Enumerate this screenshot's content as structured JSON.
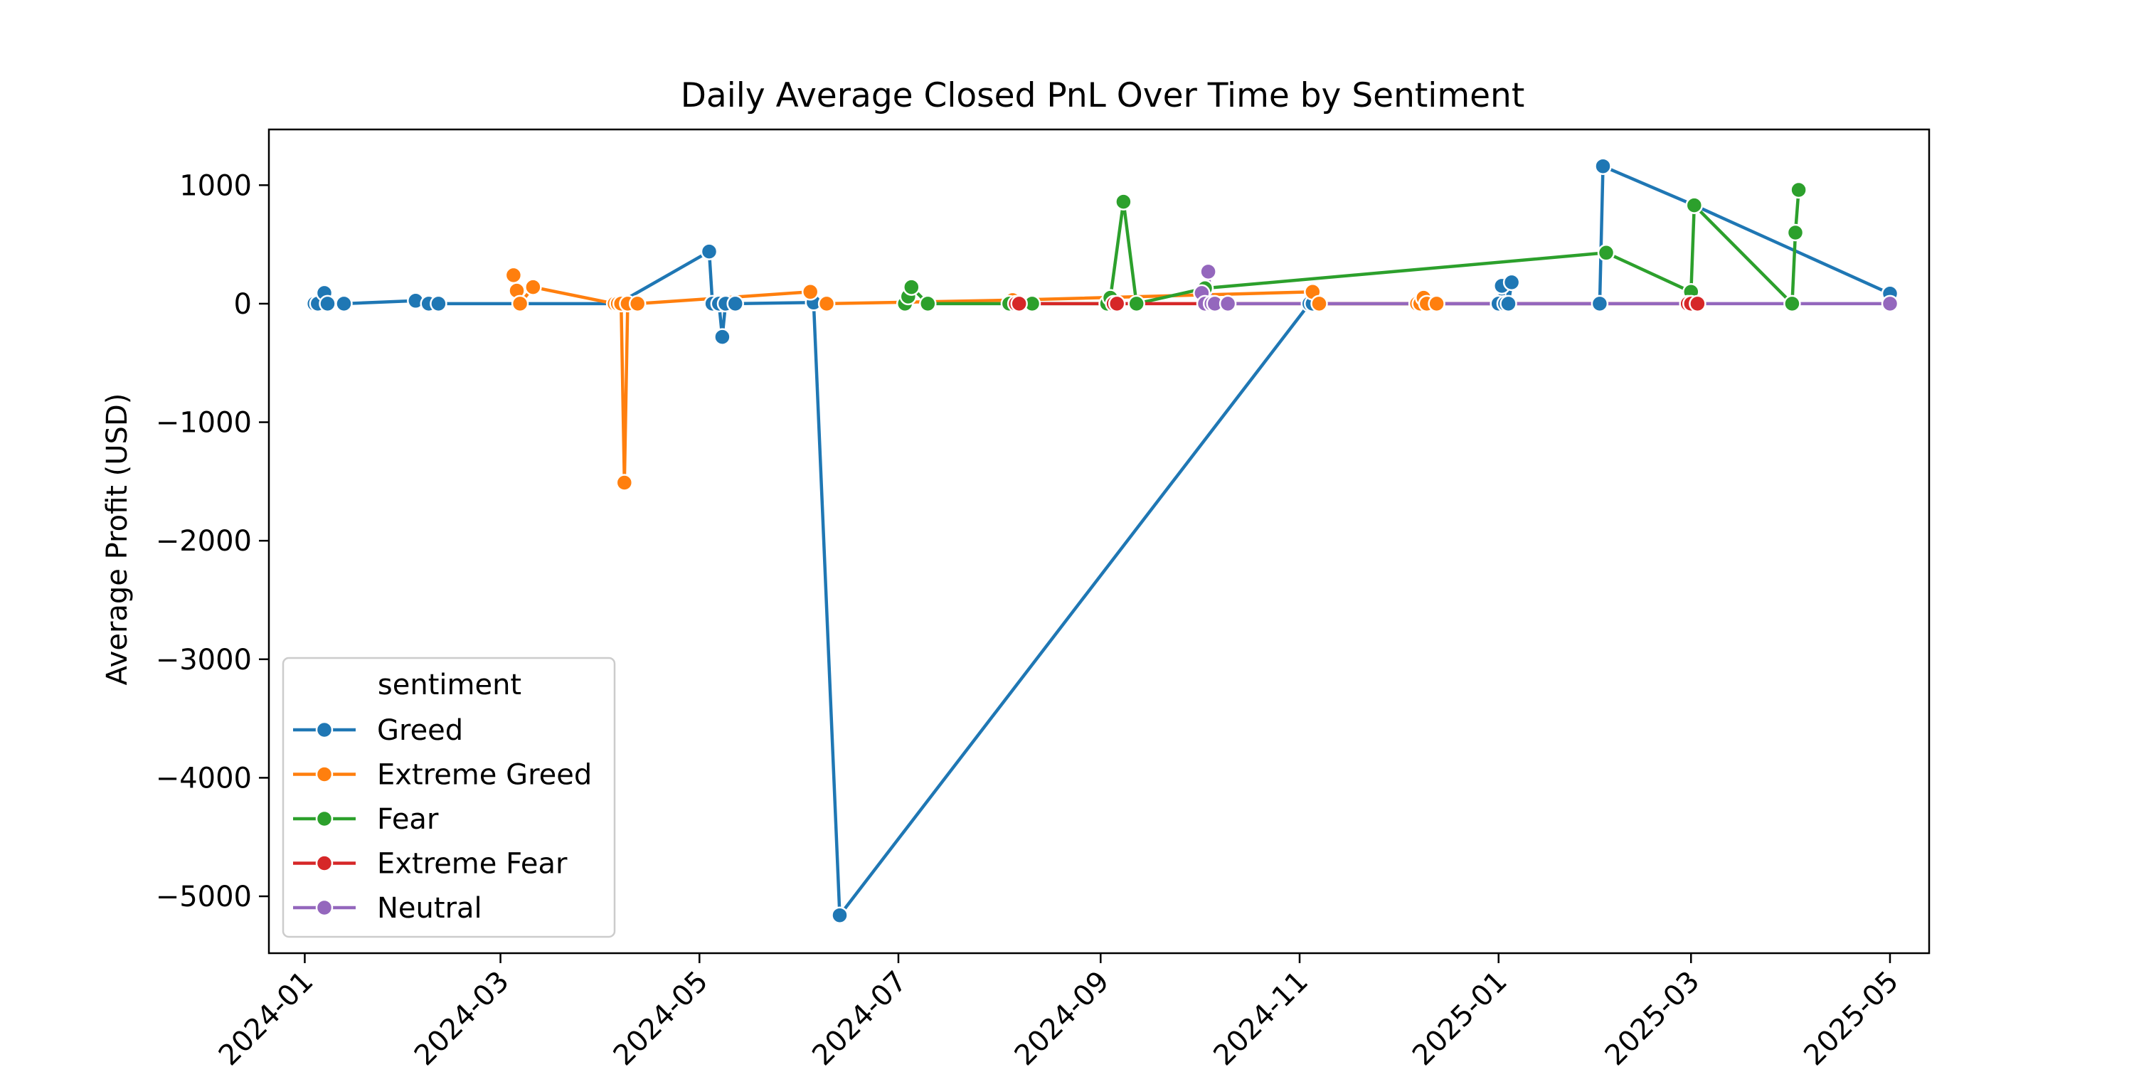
{
  "chart_data": {
    "type": "line",
    "title": "Daily Average Closed PnL Over Time by Sentiment",
    "xlabel": "",
    "ylabel": "Average Profit (USD)",
    "x_axis": {
      "type": "date",
      "range": [
        "2023-12-21",
        "2025-05-13"
      ],
      "ticks": [
        "2024-01-01",
        "2024-03-01",
        "2024-05-01",
        "2024-07-01",
        "2024-09-01",
        "2024-11-01",
        "2025-01-01",
        "2025-03-01",
        "2025-05-01"
      ],
      "tick_labels": [
        "2024-01",
        "2024-03",
        "2024-05",
        "2024-07",
        "2024-09",
        "2024-11",
        "2025-01",
        "2025-03",
        "2025-05"
      ]
    },
    "y_axis": {
      "range": [
        -5480,
        1470
      ],
      "ticks": [
        1000,
        0,
        -1000,
        -2000,
        -3000,
        -4000,
        -5000
      ],
      "tick_labels": [
        "1000",
        "0",
        "−1000",
        "−2000",
        "−3000",
        "−4000",
        "−5000"
      ]
    },
    "grid": false,
    "legend": {
      "title": "sentiment",
      "placement": "lower-left"
    },
    "series": [
      {
        "name": "Greed",
        "color": "#1f77b4",
        "points": [
          [
            "2024-01-04",
            0
          ],
          [
            "2024-01-05",
            0
          ],
          [
            "2024-01-07",
            90
          ],
          [
            "2024-01-08",
            0
          ],
          [
            "2024-01-13",
            0
          ],
          [
            "2024-02-04",
            25
          ],
          [
            "2024-02-08",
            0
          ],
          [
            "2024-02-11",
            0
          ],
          [
            "2024-04-06",
            0
          ],
          [
            "2024-05-04",
            440
          ],
          [
            "2024-05-05",
            0
          ],
          [
            "2024-05-07",
            0
          ],
          [
            "2024-05-08",
            -280
          ],
          [
            "2024-05-09",
            0
          ],
          [
            "2024-05-12",
            0
          ],
          [
            "2024-06-05",
            10
          ],
          [
            "2024-06-13",
            -5160
          ],
          [
            "2024-11-04",
            0
          ],
          [
            "2024-11-05",
            0
          ],
          [
            "2025-01-01",
            0
          ],
          [
            "2025-01-02",
            150
          ],
          [
            "2025-01-03",
            0
          ],
          [
            "2025-01-05",
            180
          ],
          [
            "2025-01-04",
            0
          ],
          [
            "2025-02-01",
            0
          ],
          [
            "2025-02-02",
            1160
          ],
          [
            "2025-03-02",
            830
          ],
          [
            "2025-05-01",
            85
          ]
        ]
      },
      {
        "name": "Extreme Greed",
        "color": "#ff7f0e",
        "points": [
          [
            "2024-03-05",
            240
          ],
          [
            "2024-03-06",
            110
          ],
          [
            "2024-03-07",
            0
          ],
          [
            "2024-03-11",
            140
          ],
          [
            "2024-04-05",
            0
          ],
          [
            "2024-04-06",
            0
          ],
          [
            "2024-04-07",
            0
          ],
          [
            "2024-04-08",
            -1510
          ],
          [
            "2024-04-09",
            0
          ],
          [
            "2024-04-12",
            0
          ],
          [
            "2024-06-04",
            100
          ],
          [
            "2024-06-09",
            0
          ],
          [
            "2024-08-05",
            30
          ],
          [
            "2024-11-05",
            100
          ],
          [
            "2024-11-07",
            0
          ],
          [
            "2024-12-07",
            0
          ],
          [
            "2024-12-08",
            0
          ],
          [
            "2024-12-09",
            50
          ],
          [
            "2024-12-10",
            0
          ],
          [
            "2024-12-13",
            0
          ]
        ]
      },
      {
        "name": "Fear",
        "color": "#2ca02c",
        "points": [
          [
            "2024-07-03",
            0
          ],
          [
            "2024-07-04",
            60
          ],
          [
            "2024-07-05",
            140
          ],
          [
            "2024-07-10",
            0
          ],
          [
            "2024-08-04",
            0
          ],
          [
            "2024-08-11",
            0
          ],
          [
            "2024-09-03",
            0
          ],
          [
            "2024-09-04",
            50
          ],
          [
            "2024-09-08",
            860
          ],
          [
            "2024-09-12",
            0
          ],
          [
            "2024-10-03",
            130
          ],
          [
            "2025-02-03",
            430
          ],
          [
            "2025-03-01",
            100
          ],
          [
            "2025-03-02",
            830
          ],
          [
            "2025-04-01",
            0
          ],
          [
            "2025-04-02",
            600
          ],
          [
            "2025-04-03",
            960
          ]
        ]
      },
      {
        "name": "Extreme Fear",
        "color": "#d62728",
        "points": [
          [
            "2024-08-06",
            0
          ],
          [
            "2024-08-07",
            0
          ],
          [
            "2024-09-05",
            0
          ],
          [
            "2024-09-06",
            0
          ],
          [
            "2025-02-28",
            0
          ],
          [
            "2025-03-01",
            0
          ],
          [
            "2025-03-03",
            0
          ]
        ]
      },
      {
        "name": "Neutral",
        "color": "#9467bd",
        "points": [
          [
            "2024-10-02",
            90
          ],
          [
            "2024-10-03",
            0
          ],
          [
            "2024-10-04",
            270
          ],
          [
            "2024-10-05",
            0
          ],
          [
            "2024-10-06",
            0
          ],
          [
            "2024-10-10",
            0
          ],
          [
            "2025-05-01",
            0
          ]
        ]
      }
    ]
  }
}
